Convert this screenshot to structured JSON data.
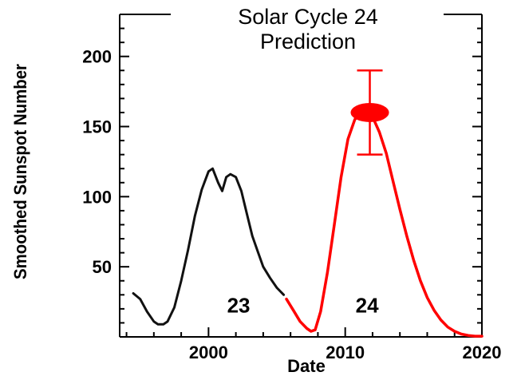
{
  "chart_data": {
    "type": "line",
    "title": "Solar Cycle 24",
    "subtitle": "Prediction",
    "xlabel": "Date",
    "ylabel": "Smoothed Sunspot Number",
    "xlim": [
      1993.5,
      2020
    ],
    "ylim": [
      0,
      230
    ],
    "x_ticks": [
      "2000",
      "2010",
      "2020"
    ],
    "y_ticks": [
      "50",
      "100",
      "150",
      "200"
    ],
    "grid": false,
    "series": [
      {
        "color": "#111111",
        "x": [
          1994.5,
          1995.0,
          1995.5,
          1996.0,
          1996.3,
          1996.7,
          1997.0,
          1997.5,
          1998.0,
          1998.5,
          1999.0,
          1999.5,
          2000.0,
          2000.3,
          2000.7,
          2001.0,
          2001.3,
          2001.6,
          2002.0,
          2002.4,
          2002.8,
          2003.2,
          2003.6,
          2004.0,
          2004.5,
          2005.0,
          2005.5
        ],
        "y": [
          31,
          27,
          18,
          11,
          9,
          9,
          11,
          21,
          40,
          62,
          86,
          105,
          118,
          120,
          110,
          104,
          114,
          116,
          114,
          104,
          88,
          72,
          61,
          50,
          42,
          35,
          30
        ]
      },
      {
        "color": "#ff0000",
        "x": [
          2005.7,
          2006.2,
          2006.7,
          2007.2,
          2007.5,
          2007.8,
          2008.2,
          2008.7,
          2009.2,
          2009.7,
          2010.2,
          2010.7,
          2011.2,
          2011.6,
          2012.0,
          2012.5,
          2013.0,
          2013.5,
          2014.0,
          2014.5,
          2015.0,
          2015.5,
          2016.0,
          2016.5,
          2017.0,
          2017.5,
          2018.0,
          2018.5,
          2019.0,
          2019.5,
          2020.0
        ],
        "y": [
          27,
          19,
          11,
          6,
          4,
          5,
          18,
          46,
          80,
          114,
          141,
          155,
          160,
          160,
          157,
          146,
          131,
          111,
          91,
          72,
          55,
          40,
          28,
          19,
          12,
          7,
          4,
          2,
          1,
          0.5,
          0.5
        ]
      }
    ],
    "prediction_point": {
      "x": 2011.8,
      "y": 160,
      "error_low": 130,
      "error_high": 190,
      "color": "#ff0000"
    },
    "annotations": [
      {
        "text": "23",
        "x": 2002.2,
        "y": 23
      },
      {
        "text": "24",
        "x": 2011.6,
        "y": 23
      }
    ]
  }
}
